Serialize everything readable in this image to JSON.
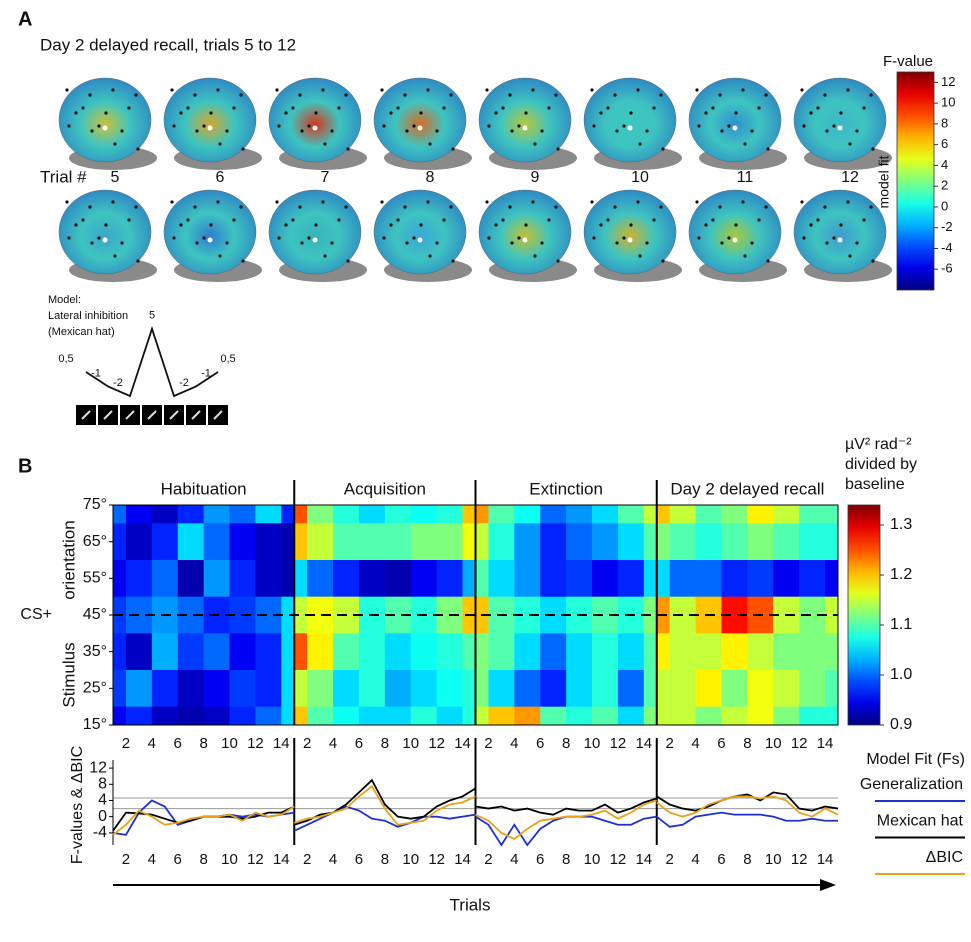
{
  "figure": {
    "panel_a_label": "A",
    "panel_b_label": "B"
  },
  "panel_a": {
    "title": "Day 2 delayed recall, trials 5 to 12",
    "trial_label": "Trial #",
    "trials": [
      "5",
      "6",
      "7",
      "8",
      "9",
      "10",
      "11",
      "12"
    ],
    "model": {
      "lines": [
        "Model:",
        "Lateral inhibition",
        "(Mexican hat)"
      ],
      "weights": [
        {
          "value": 0.5,
          "label": "0,5"
        },
        -1,
        -2,
        5,
        -2,
        -1,
        {
          "value": 0.5,
          "label": "0,5"
        }
      ]
    }
  },
  "chart_data": [
    {
      "type": "colorbar",
      "title": "F-value",
      "axis_label": "model fit",
      "ylim": [
        -8,
        13
      ],
      "yticks": [
        12,
        10,
        8,
        6,
        4,
        2,
        0,
        -2,
        -4,
        -6
      ]
    },
    {
      "type": "contour",
      "phases": [
        "Habituation",
        "Acquisition",
        "Extinction",
        "Day 2 delayed recall"
      ],
      "x": [
        1,
        3,
        5,
        7,
        9,
        11,
        13,
        15
      ],
      "xlim": [
        1,
        15
      ],
      "xticks": [
        2,
        4,
        6,
        8,
        10,
        12,
        14
      ],
      "y": [
        75,
        65,
        55,
        45,
        35,
        25,
        15
      ],
      "ylim": [
        15,
        75
      ],
      "yticks": [
        {
          "value": 75,
          "label": "75°"
        },
        {
          "value": 65,
          "label": "65°"
        },
        {
          "value": 55,
          "label": "55°"
        },
        {
          "value": 45,
          "label": "45°"
        },
        {
          "value": 35,
          "label": "35°"
        },
        {
          "value": 25,
          "label": "25°"
        },
        {
          "value": 15,
          "label": "15°"
        }
      ],
      "reference": {
        "value": 45,
        "label": "CS+"
      },
      "y_label": [
        "Stimulus",
        "orientation"
      ],
      "values": [
        [
          [
            1.0,
            0.95,
            0.93,
            0.97,
            1.02,
            1.0,
            1.05,
            0.97
          ],
          [
            0.97,
            0.93,
            0.97,
            1.05,
            1.0,
            0.95,
            0.93,
            0.92
          ],
          [
            0.95,
            0.97,
            1.0,
            0.92,
            1.02,
            0.97,
            0.93,
            0.92
          ],
          [
            0.98,
            1.0,
            1.02,
            1.0,
            0.97,
            0.98,
            1.0,
            1.05
          ],
          [
            0.97,
            0.93,
            1.03,
            0.98,
            1.0,
            0.95,
            0.97,
            1.05
          ],
          [
            0.98,
            1.02,
            0.97,
            0.93,
            0.95,
            0.98,
            0.97,
            1.05
          ],
          [
            0.95,
            0.97,
            0.93,
            0.92,
            0.93,
            0.97,
            1.0,
            1.05
          ]
        ],
        [
          [
            1.25,
            1.12,
            1.08,
            1.05,
            1.08,
            1.07,
            1.08,
            1.2
          ],
          [
            1.2,
            1.15,
            1.1,
            1.1,
            1.1,
            1.12,
            1.12,
            1.17
          ],
          [
            1.05,
            1.0,
            0.97,
            0.93,
            0.92,
            0.95,
            0.97,
            1.03
          ],
          [
            1.15,
            1.17,
            1.15,
            1.08,
            1.1,
            1.08,
            1.12,
            1.2
          ],
          [
            1.25,
            1.18,
            1.1,
            1.08,
            1.05,
            1.07,
            1.08,
            1.1
          ],
          [
            1.15,
            1.12,
            1.05,
            1.08,
            1.03,
            1.05,
            1.07,
            1.08
          ],
          [
            1.2,
            1.1,
            1.07,
            1.05,
            1.05,
            1.08,
            1.05,
            1.08
          ]
        ],
        [
          [
            1.22,
            1.1,
            1.07,
            1.0,
            1.02,
            1.05,
            1.1,
            1.15
          ],
          [
            1.15,
            1.08,
            1.02,
            0.97,
            1.0,
            1.02,
            1.05,
            1.1
          ],
          [
            1.1,
            1.05,
            1.02,
            0.97,
            0.98,
            0.95,
            0.97,
            1.05
          ],
          [
            1.2,
            1.1,
            1.08,
            1.05,
            1.08,
            1.1,
            1.08,
            1.12
          ],
          [
            1.12,
            1.1,
            1.05,
            1.0,
            1.05,
            1.08,
            1.05,
            1.1
          ],
          [
            1.12,
            1.05,
            1.0,
            0.97,
            1.05,
            1.08,
            1.0,
            1.1
          ],
          [
            1.15,
            1.2,
            1.22,
            1.1,
            1.08,
            1.1,
            1.05,
            1.12
          ]
        ],
        [
          [
            1.2,
            1.15,
            1.1,
            1.12,
            1.18,
            1.15,
            1.1,
            1.1
          ],
          [
            1.12,
            1.1,
            1.08,
            1.1,
            1.12,
            1.1,
            1.08,
            1.08
          ],
          [
            1.05,
            1.0,
            1.0,
            0.97,
            0.98,
            0.95,
            0.97,
            0.95
          ],
          [
            1.22,
            1.15,
            1.2,
            1.28,
            1.25,
            1.15,
            1.12,
            1.15
          ],
          [
            1.18,
            1.15,
            1.15,
            1.18,
            1.15,
            1.12,
            1.12,
            1.12
          ],
          [
            1.15,
            1.15,
            1.18,
            1.12,
            1.17,
            1.15,
            1.12,
            1.1
          ],
          [
            1.15,
            1.15,
            1.12,
            1.15,
            1.17,
            1.12,
            1.08,
            1.08
          ]
        ]
      ],
      "colorbar": {
        "title": [
          "µV² rad⁻²",
          "divided by",
          "baseline"
        ],
        "ylim": [
          0.9,
          1.34
        ],
        "yticks": [
          1.3,
          1.2,
          1.1,
          {
            "value": 1,
            "label": "1.0"
          },
          0.9
        ]
      }
    },
    {
      "type": "line",
      "legend_title": "Model Fit (Fs)",
      "x_label": "Trials",
      "y_label": "F-values & ΔBIC",
      "x": [
        1,
        2,
        3,
        4,
        5,
        6,
        7,
        8,
        9,
        10,
        11,
        12,
        13,
        14,
        15
      ],
      "xlim": [
        1,
        15
      ],
      "xticks": [
        2,
        4,
        6,
        8,
        10,
        12,
        14
      ],
      "ylim": [
        -7,
        14
      ],
      "yticks": [
        -4,
        0,
        4,
        8,
        12
      ],
      "hlines": [
        4.6,
        2
      ],
      "series": [
        {
          "name": "Generalization",
          "color": "#1f2fd6",
          "values": [
            [
              -4,
              -4.5,
              1,
              4,
              2.5,
              -2,
              -1,
              0,
              0,
              0.5,
              0,
              0.5,
              0,
              0.5,
              1
            ],
            [
              -3.5,
              -2,
              -0.5,
              1,
              2.5,
              1.5,
              -0.5,
              -1,
              -2.5,
              -1.5,
              0,
              0,
              -0.5,
              0,
              0.5
            ],
            [
              0,
              -2,
              -7,
              -2,
              -7,
              -3,
              -1,
              0,
              0,
              0,
              -1,
              -2,
              -2,
              -0.5,
              0
            ],
            [
              0,
              -2.5,
              -2,
              0,
              0.5,
              1,
              0.5,
              0.5,
              0.5,
              0,
              -1,
              -1,
              -0.5,
              -1,
              -1
            ]
          ]
        },
        {
          "name": "Mexican hat",
          "color": "#000000",
          "values": [
            [
              -3.5,
              1,
              0.8,
              0.5,
              -0.5,
              -1.5,
              -1,
              0,
              0,
              0,
              -0.5,
              0,
              1,
              1,
              2.5
            ],
            [
              -2,
              -1,
              0.5,
              1,
              3,
              6,
              9,
              3,
              0,
              -0.5,
              0,
              2.5,
              4,
              5,
              7
            ],
            [
              2.5,
              2,
              2.5,
              1.5,
              2,
              1,
              0.5,
              2,
              1.5,
              1.5,
              3,
              1,
              2,
              3.5,
              4.5
            ],
            [
              5,
              3,
              2,
              1.5,
              2.5,
              4,
              5,
              5.5,
              4,
              6,
              5.5,
              2,
              1.5,
              2.5,
              2
            ]
          ]
        },
        {
          "name": "ΔBIC",
          "color": "#e8a317",
          "values": [
            [
              -4.5,
              -2,
              1.5,
              0,
              -2,
              -1.5,
              -0.5,
              0,
              0,
              0.5,
              -1,
              1,
              0,
              0.5,
              2.5
            ],
            [
              -1.5,
              -0.5,
              0,
              1,
              2,
              5,
              7.5,
              2,
              -2,
              -1.5,
              -1,
              1.5,
              3,
              3.5,
              5
            ],
            [
              0.5,
              -1,
              -4,
              -5.5,
              -3,
              -1,
              -0.5,
              0,
              0,
              0.5,
              1.5,
              -0.5,
              1,
              3,
              4
            ],
            [
              3.5,
              1,
              0,
              1,
              3,
              4,
              5,
              5,
              4.5,
              5,
              4,
              1,
              0,
              2,
              0.5
            ]
          ]
        }
      ]
    }
  ]
}
